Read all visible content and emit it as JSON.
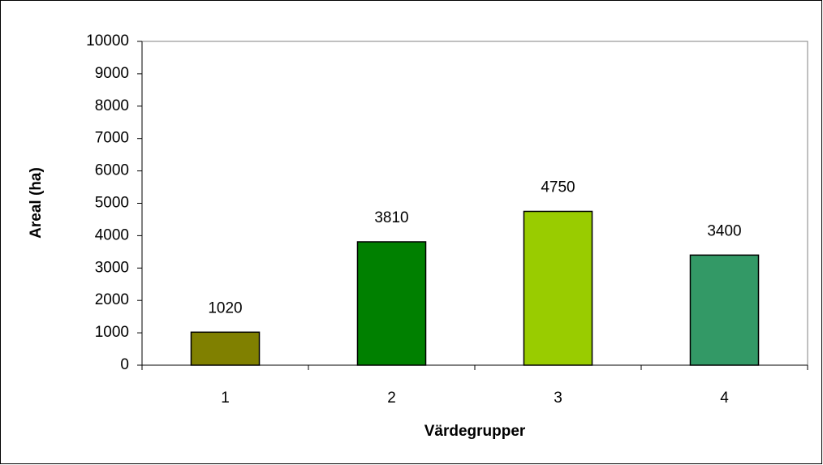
{
  "chart_data": {
    "type": "bar",
    "categories": [
      "1",
      "2",
      "3",
      "4"
    ],
    "values": [
      1020,
      3810,
      4750,
      3400
    ],
    "colors": [
      "#808000",
      "#008000",
      "#99cc00",
      "#339966"
    ],
    "ylim": [
      0,
      10000
    ],
    "yticks": [
      0,
      1000,
      2000,
      3000,
      4000,
      5000,
      6000,
      7000,
      8000,
      9000,
      10000
    ],
    "x_label": "Värdegrupper",
    "y_label": "Areal (ha)"
  }
}
